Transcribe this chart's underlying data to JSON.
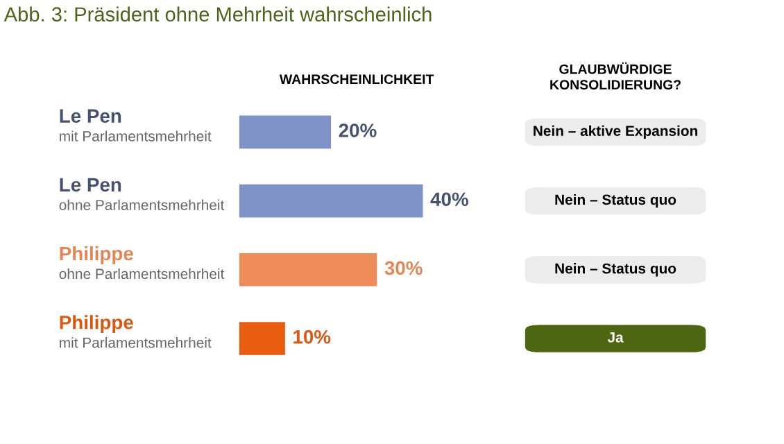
{
  "chart_data": [
    {
      "type": "bar",
      "orientation": "horizontal",
      "title": "Abb. 3: Präsident ohne Mehrheit wahrscheinlich",
      "xlabel": "WAHRSCHEINLICHKEIT",
      "categories": [
        "Le Pen\nmit Parlamentsmehrheit",
        "Le Pen\nohne Parlamentsmehrheit",
        "Philippe\nohne Parlamentsmehrheit",
        "Philippe\nmit Parlamentsmehrheit"
      ],
      "values": [
        20,
        40,
        30,
        10
      ],
      "colors": [
        "#7f93c9",
        "#7f93c9",
        "#f08c5a",
        "#e85d10"
      ],
      "value_labels": [
        "20%",
        "40%",
        "30%",
        "10%"
      ]
    },
    {
      "type": "other",
      "title": "GLAUBWÜRDIGE\nKONSOLIDIERUNG?",
      "categories": [
        "Nein – aktive Expansion",
        "Nein – Status quo",
        "Nein – Status quo",
        "Ja"
      ],
      "colors": [
        "#ececec",
        "#ececec",
        "#ececec",
        "#4e6512"
      ]
    }
  ]
}
